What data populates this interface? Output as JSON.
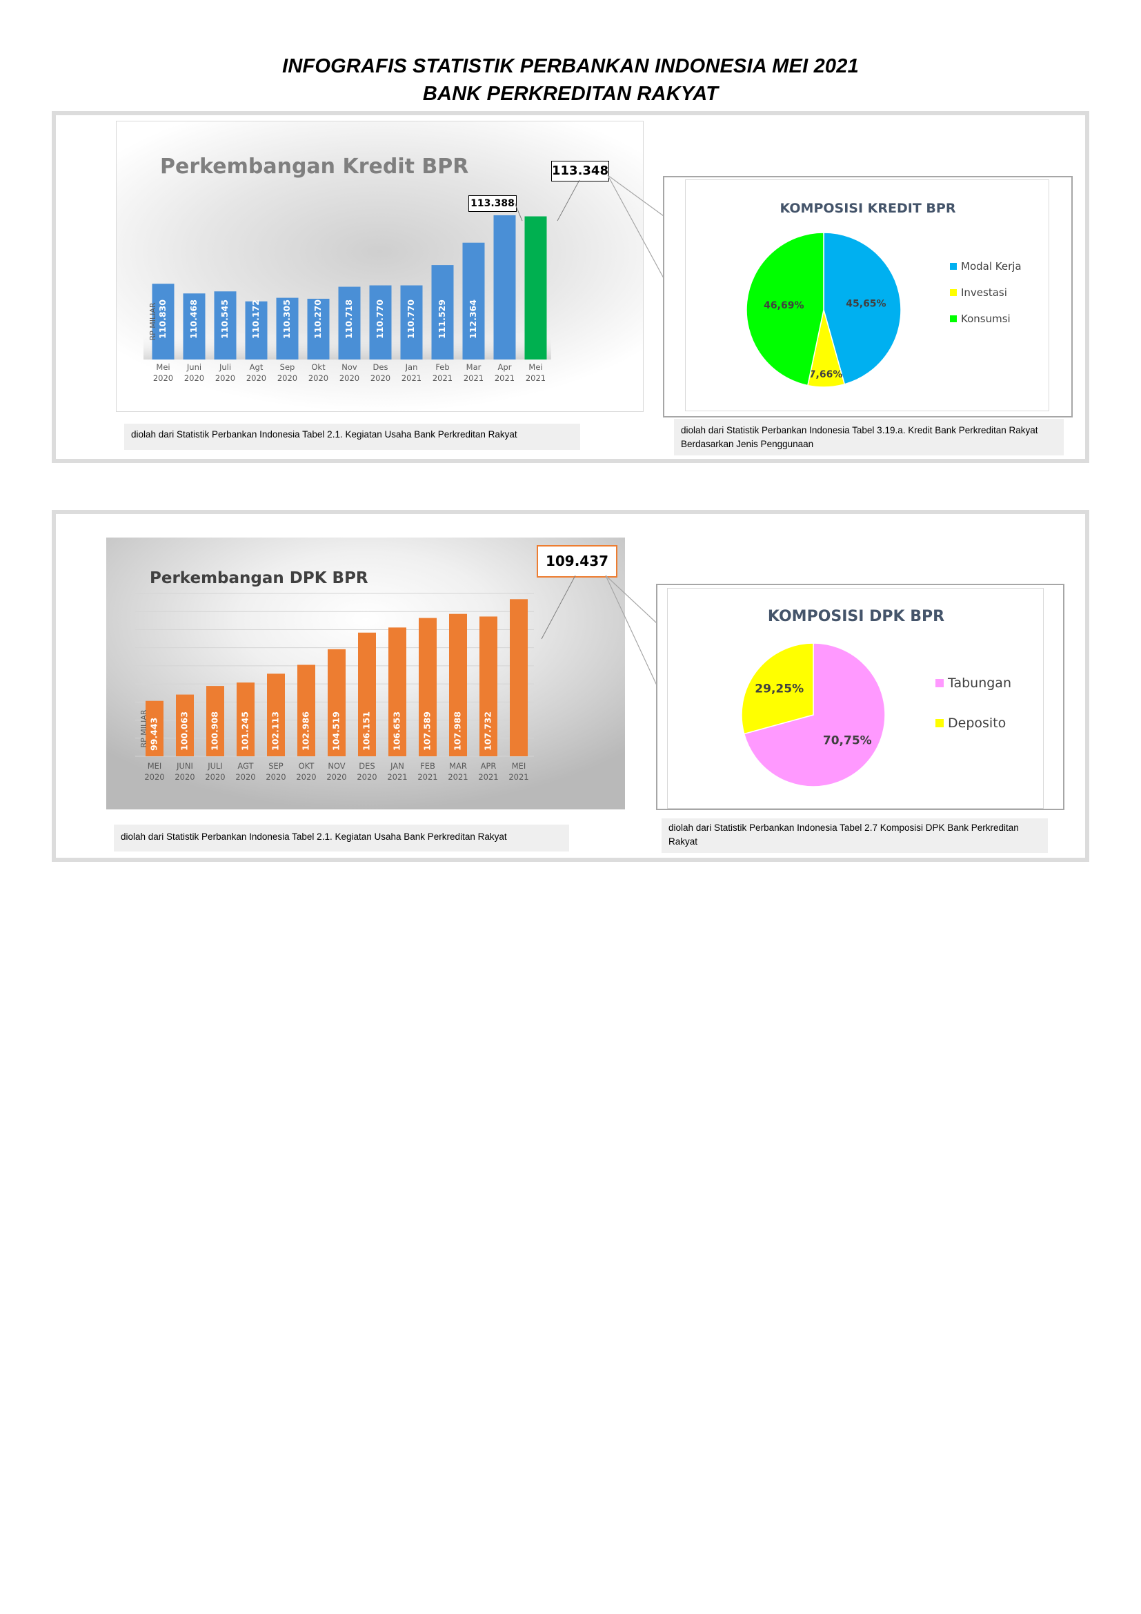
{
  "header": {
    "line1": "INFOGRAFIS STATISTIK PERBANKAN INDONESIA MEI 2021",
    "line2": "BANK PERKREDITAN RAKYAT"
  },
  "kredit": {
    "title": "Perkembangan Kredit BPR",
    "callout_apr": "113.388",
    "callout_mei": "113.348",
    "source": "diolah dari Statistik Perbankan Indonesia Tabel 2.1. Kegiatan Usaha Bank Perkreditan Rakyat"
  },
  "kredit_pie": {
    "title": "KOMPOSISI KREDIT BPR",
    "source": "diolah dari Statistik Perbankan Indonesia Tabel 3.19.a. Kredit Bank Perkreditan Rakyat Berdasarkan Jenis Penggunaan"
  },
  "dpk": {
    "title": "Perkembangan DPK BPR",
    "callout_mei": "109.437",
    "source": "diolah dari Statistik Perbankan Indonesia Tabel 2.1. Kegiatan Usaha Bank Perkreditan Rakyat"
  },
  "dpk_pie": {
    "title": "KOMPOSISI DPK BPR",
    "source": "diolah dari Statistik Perbankan Indonesia Tabel 2.7 Komposisi DPK Bank Perkreditan Rakyat"
  },
  "chart_data": [
    {
      "id": "kredit_bar",
      "type": "bar",
      "title": "Perkembangan Kredit BPR",
      "ylabel": "RP MILIAR",
      "categories": [
        [
          "Mei",
          "2020"
        ],
        [
          "Juni",
          "2020"
        ],
        [
          "Juli",
          "2020"
        ],
        [
          "Agt",
          "2020"
        ],
        [
          "Sep",
          "2020"
        ],
        [
          "Okt",
          "2020"
        ],
        [
          "Nov",
          "2020"
        ],
        [
          "Des",
          "2020"
        ],
        [
          "Jan",
          "2021"
        ],
        [
          "Feb",
          "2021"
        ],
        [
          "Mar",
          "2021"
        ],
        [
          "Apr",
          "2021"
        ],
        [
          "Mei",
          "2021"
        ]
      ],
      "values": [
        110830,
        110468,
        110545,
        110172,
        110305,
        110270,
        110718,
        110770,
        110770,
        111529,
        112364,
        113388,
        113348
      ],
      "labels": [
        "110.830",
        "110.468",
        "110.545",
        "110.172",
        "110.305",
        "110.270",
        "110.718",
        "110.770",
        "110.770",
        "111.529",
        "112.364",
        "",
        ""
      ],
      "colors": {
        "bar": "#4a8fd6",
        "highlight": "#00b050"
      },
      "ylim": [
        108000,
        113800
      ]
    },
    {
      "id": "kredit_pie",
      "type": "pie",
      "title": "KOMPOSISI KREDIT BPR",
      "slices": [
        {
          "name": "Modal Kerja",
          "value": 45.65,
          "label": "45,65%",
          "color": "#00b0f0"
        },
        {
          "name": "Investasi",
          "value": 7.66,
          "label": "7,66%",
          "color": "#ffff00"
        },
        {
          "name": "Konsumsi",
          "value": 46.69,
          "label": "46,69%",
          "color": "#00ff00"
        }
      ],
      "legend": "right"
    },
    {
      "id": "dpk_bar",
      "type": "bar",
      "title": "Perkembangan DPK BPR",
      "ylabel": "RP MILIAR",
      "categories": [
        [
          "MEI",
          "2020"
        ],
        [
          "JUNI",
          "2020"
        ],
        [
          "JULI",
          "2020"
        ],
        [
          "AGT",
          "2020"
        ],
        [
          "SEP",
          "2020"
        ],
        [
          "OKT",
          "2020"
        ],
        [
          "NOV",
          "2020"
        ],
        [
          "DES",
          "2020"
        ],
        [
          "JAN",
          "2021"
        ],
        [
          "FEB",
          "2021"
        ],
        [
          "MAR",
          "2021"
        ],
        [
          "APR",
          "2021"
        ],
        [
          "MEI",
          "2021"
        ]
      ],
      "values": [
        99443,
        100063,
        100908,
        101245,
        102113,
        102986,
        104519,
        106151,
        106653,
        107589,
        107988,
        107732,
        109437
      ],
      "labels": [
        "99.443",
        "100.063",
        "100.908",
        "101.245",
        "102.113",
        "102.986",
        "104.519",
        "106.151",
        "106.653",
        "107.589",
        "107.988",
        "107.732",
        ""
      ],
      "colors": {
        "bar": "#ed7d31"
      },
      "ylim": [
        94000,
        110000
      ],
      "grid": true
    },
    {
      "id": "dpk_pie",
      "type": "pie",
      "title": "KOMPOSISI DPK BPR",
      "slices": [
        {
          "name": "Tabungan",
          "value": 70.75,
          "label": "70,75%",
          "color": "#ff99ff"
        },
        {
          "name": "Deposito",
          "value": 29.25,
          "label": "29,25%",
          "color": "#ffff00"
        }
      ],
      "legend": "right"
    }
  ]
}
